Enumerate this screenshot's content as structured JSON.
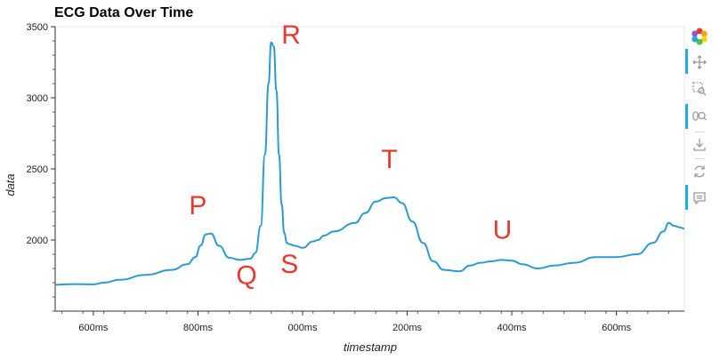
{
  "chart_data": {
    "type": "line",
    "title": "ECG Data Over Time",
    "xlabel": "timestamp",
    "ylabel": "data",
    "x_ticks": [
      "600ms",
      "800ms",
      "000ms",
      "200ms",
      "400ms",
      "600ms"
    ],
    "x_tick_ms": [
      600,
      800,
      1000,
      1200,
      1400,
      1600
    ],
    "xlim_ms": [
      527,
      1730
    ],
    "y_ticks": [
      "2000",
      "2500",
      "3000",
      "3500"
    ],
    "y_tick_values": [
      2000,
      2500,
      3000,
      3500
    ],
    "ylim": [
      1500,
      3500
    ],
    "grid": false,
    "series": [
      {
        "color": "#2b9bd2",
        "x_ms": [
          527,
          560,
          600,
          620,
          650,
          700,
          750,
          780,
          795,
          805,
          815,
          825,
          840,
          860,
          880,
          900,
          910,
          920,
          928,
          935,
          940,
          945,
          950,
          955,
          960,
          965,
          970,
          975,
          985,
          1000,
          1020,
          1030,
          1040,
          1060,
          1100,
          1120,
          1140,
          1160,
          1175,
          1190,
          1210,
          1230,
          1250,
          1270,
          1300,
          1320,
          1340,
          1360,
          1380,
          1400,
          1420,
          1450,
          1480,
          1520,
          1560,
          1600,
          1640,
          1670,
          1690,
          1700,
          1710,
          1720,
          1730
        ],
        "values": [
          1685,
          1690,
          1688,
          1700,
          1720,
          1755,
          1790,
          1830,
          1880,
          1960,
          2040,
          2045,
          1960,
          1875,
          1860,
          1868,
          1910,
          2100,
          2600,
          3100,
          3390,
          3360,
          3050,
          2600,
          2250,
          2050,
          1980,
          1970,
          1960,
          1945,
          1990,
          2000,
          2030,
          2060,
          2120,
          2190,
          2270,
          2295,
          2300,
          2260,
          2130,
          1980,
          1850,
          1790,
          1780,
          1820,
          1840,
          1850,
          1860,
          1855,
          1830,
          1800,
          1820,
          1840,
          1880,
          1880,
          1900,
          1980,
          2060,
          2120,
          2100,
          2090,
          2080
        ]
      }
    ],
    "annotations": [
      {
        "text": "P",
        "x_ms": 800,
        "y": 2180,
        "color": "#e8392e"
      },
      {
        "text": "Q",
        "x_ms": 893,
        "y": 1690,
        "color": "#e8392e"
      },
      {
        "text": "R",
        "x_ms": 978,
        "y": 3380,
        "color": "#e8392e"
      },
      {
        "text": "S",
        "x_ms": 975,
        "y": 1770,
        "color": "#e8392e"
      },
      {
        "text": "T",
        "x_ms": 1166,
        "y": 2505,
        "color": "#e8392e"
      },
      {
        "text": "U",
        "x_ms": 1382,
        "y": 2010,
        "color": "#e8392e"
      }
    ]
  },
  "toolbar": {
    "tools": [
      {
        "name": "bokeh-logo-icon"
      },
      {
        "name": "pan-icon"
      },
      {
        "name": "box-zoom-icon"
      },
      {
        "name": "wheel-zoom-icon"
      },
      {
        "name": "save-icon"
      },
      {
        "name": "reset-icon"
      },
      {
        "name": "hover-icon"
      }
    ]
  }
}
